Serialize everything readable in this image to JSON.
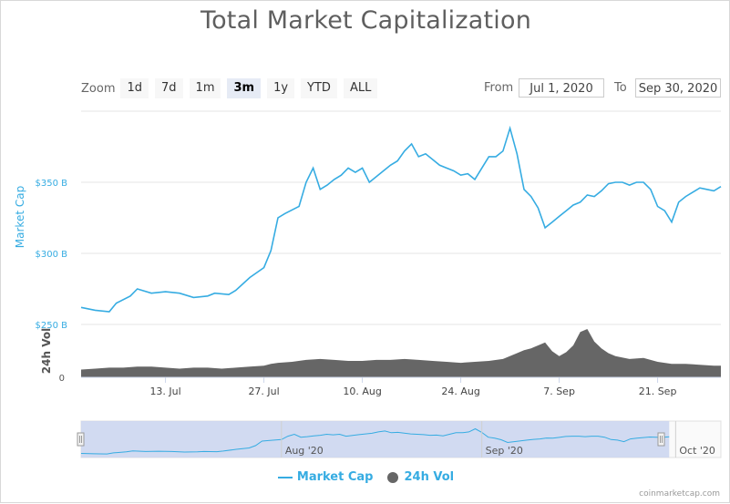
{
  "title": "Total Market Capitalization",
  "zoom": {
    "label": "Zoom",
    "buttons": [
      "1d",
      "7d",
      "1m",
      "3m",
      "1y",
      "YTD",
      "ALL"
    ],
    "active": "3m"
  },
  "range": {
    "from_label": "From",
    "from_value": "Jul 1, 2020",
    "to_label": "To",
    "to_value": "Sep 30, 2020"
  },
  "legend": {
    "market_cap": "Market Cap",
    "volume": "24h Vol"
  },
  "credits": "coinmarketcap.com",
  "colors": {
    "market_cap": "#36ace2",
    "volume": "#666666",
    "navigator_fill": "#c9d4ee"
  },
  "chart_data": {
    "type": "line",
    "title": "Total Market Capitalization",
    "y_axis": {
      "label": "Market Cap",
      "unit": "B",
      "ticks": [
        "$250 B",
        "$300 B",
        "$350 B"
      ],
      "tick_values": [
        250,
        300,
        350
      ],
      "range": [
        250,
        400
      ]
    },
    "volume_axis": {
      "label": "24h Vol",
      "ticks": [
        "0"
      ]
    },
    "x_axis": {
      "ticks": [
        "13. Jul",
        "27. Jul",
        "10. Aug",
        "24. Aug",
        "7. Sep",
        "21. Sep"
      ],
      "tick_days": [
        12,
        26,
        40,
        54,
        68,
        82
      ],
      "range_days": [
        0,
        91
      ]
    },
    "navigator": {
      "ticks": [
        "Aug '20",
        "Sep '20",
        "Oct '20"
      ],
      "tick_days": [
        31,
        62,
        92
      ]
    },
    "series": [
      {
        "name": "Market Cap",
        "unit": "B",
        "points": [
          [
            0,
            262
          ],
          [
            2,
            260
          ],
          [
            4,
            259
          ],
          [
            5,
            265
          ],
          [
            7,
            270
          ],
          [
            8,
            275
          ],
          [
            10,
            272
          ],
          [
            12,
            273
          ],
          [
            14,
            272
          ],
          [
            16,
            269
          ],
          [
            18,
            270
          ],
          [
            19,
            272
          ],
          [
            21,
            271
          ],
          [
            22,
            274
          ],
          [
            24,
            283
          ],
          [
            26,
            290
          ],
          [
            27,
            302
          ],
          [
            28,
            325
          ],
          [
            29,
            328
          ],
          [
            31,
            333
          ],
          [
            32,
            350
          ],
          [
            33,
            360
          ],
          [
            34,
            345
          ],
          [
            35,
            348
          ],
          [
            36,
            352
          ],
          [
            37,
            355
          ],
          [
            38,
            360
          ],
          [
            39,
            357
          ],
          [
            40,
            360
          ],
          [
            41,
            350
          ],
          [
            42,
            354
          ],
          [
            43,
            358
          ],
          [
            44,
            362
          ],
          [
            45,
            365
          ],
          [
            46,
            372
          ],
          [
            47,
            377
          ],
          [
            48,
            368
          ],
          [
            49,
            370
          ],
          [
            50,
            366
          ],
          [
            51,
            362
          ],
          [
            52,
            360
          ],
          [
            53,
            358
          ],
          [
            54,
            355
          ],
          [
            55,
            356
          ],
          [
            56,
            352
          ],
          [
            57,
            360
          ],
          [
            58,
            368
          ],
          [
            59,
            368
          ],
          [
            60,
            372
          ],
          [
            61,
            388
          ],
          [
            62,
            370
          ],
          [
            63,
            345
          ],
          [
            64,
            340
          ],
          [
            65,
            332
          ],
          [
            66,
            318
          ],
          [
            67,
            322
          ],
          [
            68,
            326
          ],
          [
            69,
            330
          ],
          [
            70,
            334
          ],
          [
            71,
            336
          ],
          [
            72,
            341
          ],
          [
            73,
            340
          ],
          [
            74,
            344
          ],
          [
            75,
            349
          ],
          [
            76,
            350
          ],
          [
            77,
            350
          ],
          [
            78,
            348
          ],
          [
            79,
            350
          ],
          [
            80,
            350
          ],
          [
            81,
            345
          ],
          [
            82,
            333
          ],
          [
            83,
            330
          ],
          [
            84,
            322
          ],
          [
            85,
            336
          ],
          [
            86,
            340
          ],
          [
            87,
            343
          ],
          [
            88,
            346
          ],
          [
            89,
            345
          ],
          [
            90,
            344
          ],
          [
            91,
            347
          ]
        ]
      },
      {
        "name": "24h Vol",
        "unit": "relative",
        "points": [
          [
            0,
            8
          ],
          [
            2,
            9
          ],
          [
            4,
            10
          ],
          [
            6,
            10
          ],
          [
            8,
            11
          ],
          [
            10,
            11
          ],
          [
            12,
            10
          ],
          [
            14,
            9
          ],
          [
            16,
            10
          ],
          [
            18,
            10
          ],
          [
            20,
            9
          ],
          [
            22,
            10
          ],
          [
            24,
            11
          ],
          [
            26,
            12
          ],
          [
            27,
            14
          ],
          [
            28,
            15
          ],
          [
            30,
            16
          ],
          [
            32,
            18
          ],
          [
            34,
            19
          ],
          [
            36,
            18
          ],
          [
            38,
            17
          ],
          [
            40,
            17
          ],
          [
            42,
            18
          ],
          [
            44,
            18
          ],
          [
            46,
            19
          ],
          [
            48,
            18
          ],
          [
            50,
            17
          ],
          [
            52,
            16
          ],
          [
            54,
            15
          ],
          [
            56,
            16
          ],
          [
            58,
            17
          ],
          [
            60,
            19
          ],
          [
            62,
            25
          ],
          [
            63,
            28
          ],
          [
            64,
            30
          ],
          [
            65,
            33
          ],
          [
            66,
            36
          ],
          [
            67,
            27
          ],
          [
            68,
            22
          ],
          [
            69,
            26
          ],
          [
            70,
            33
          ],
          [
            71,
            47
          ],
          [
            72,
            50
          ],
          [
            73,
            37
          ],
          [
            74,
            30
          ],
          [
            75,
            25
          ],
          [
            76,
            22
          ],
          [
            78,
            19
          ],
          [
            80,
            20
          ],
          [
            82,
            16
          ],
          [
            84,
            14
          ],
          [
            86,
            14
          ],
          [
            88,
            13
          ],
          [
            90,
            12
          ],
          [
            91,
            12
          ]
        ]
      }
    ]
  }
}
